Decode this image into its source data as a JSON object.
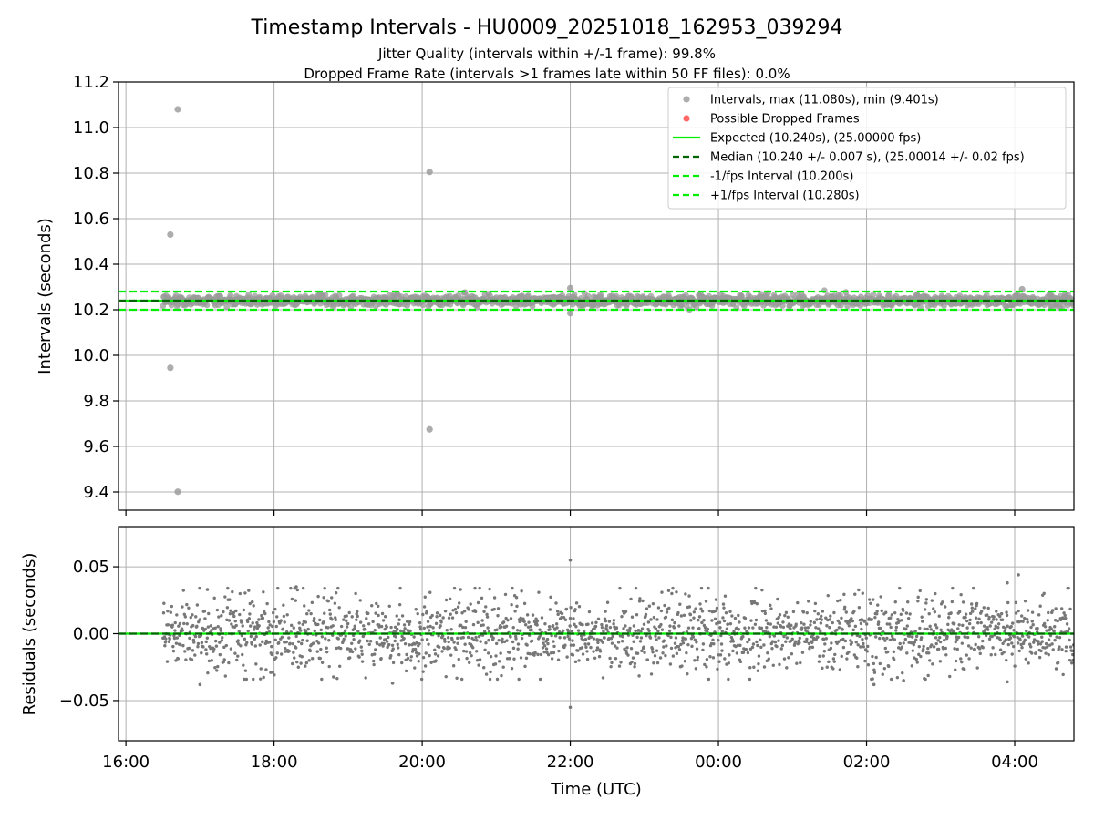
{
  "chart_data": [
    {
      "type": "scatter",
      "title": "Timestamp Intervals - HU0009_20251018_162953_039294",
      "subtitles": [
        "Jitter Quality (intervals within +/-1 frame): 99.8%",
        "Dropped Frame Rate (intervals >1 frames late within 50 FF files): 0.0%"
      ],
      "xlabel": "",
      "ylabel": "Intervals (seconds)",
      "xlim": [
        15.9,
        28.8
      ],
      "ylim": [
        9.32,
        11.2
      ],
      "x_unit": "hours since 00:00 UTC on start day",
      "yticks": [
        9.4,
        9.6,
        9.8,
        10.0,
        10.2,
        10.4,
        10.6,
        10.8,
        11.0,
        11.2
      ],
      "ytick_labels": [
        "9.4",
        "9.6",
        "9.8",
        "10.0",
        "10.2",
        "10.4",
        "10.6",
        "10.8",
        "11.0",
        "11.2"
      ],
      "xticks": [
        16,
        18,
        20,
        22,
        24,
        26,
        28
      ],
      "grid": true,
      "legend_position": "top-right",
      "series": [
        {
          "name": "Intervals, max (11.080s), min (9.401s)",
          "kind": "scatter",
          "color": "#999999",
          "note": "dense band from 16:30 to 04:48 centered on 10.240 s",
          "band": {
            "x_start": 16.5,
            "x_end": 28.8,
            "center": 10.24,
            "spread": 0.02
          },
          "outliers": [
            {
              "x": 16.7,
              "y": 11.08
            },
            {
              "x": 16.6,
              "y": 10.53
            },
            {
              "x": 16.6,
              "y": 9.945
            },
            {
              "x": 16.7,
              "y": 9.401
            },
            {
              "x": 20.1,
              "y": 10.805
            },
            {
              "x": 20.1,
              "y": 9.675
            },
            {
              "x": 22.0,
              "y": 10.295
            },
            {
              "x": 22.0,
              "y": 10.185
            },
            {
              "x": 28.1,
              "y": 10.29
            }
          ]
        },
        {
          "name": "Possible Dropped Frames",
          "kind": "scatter",
          "color": "#ff4d4d",
          "values": []
        },
        {
          "name": "Expected (10.240s), (25.00000 fps)",
          "kind": "hline",
          "y": 10.24,
          "color": "#00ee00",
          "style": "solid"
        },
        {
          "name": "Median (10.240 +/- 0.007 s), (25.00014 +/- 0.02 fps)",
          "kind": "hline",
          "y": 10.24,
          "color": "#006400",
          "style": "dashed"
        },
        {
          "name": "-1/fps Interval (10.200s)",
          "kind": "hline",
          "y": 10.2,
          "color": "#00ee00",
          "style": "dashed"
        },
        {
          "name": "+1/fps Interval (10.280s)",
          "kind": "hline",
          "y": 10.28,
          "color": "#00ee00",
          "style": "dashed"
        }
      ]
    },
    {
      "type": "scatter",
      "title": "",
      "xlabel": "Time (UTC)",
      "ylabel": "Residuals (seconds)",
      "xlim": [
        15.9,
        28.8
      ],
      "ylim": [
        -0.08,
        0.08
      ],
      "yticks": [
        -0.05,
        0.0,
        0.05
      ],
      "ytick_labels": [
        "−0.05",
        "0.00",
        "0.05"
      ],
      "xticks": [
        16,
        18,
        20,
        22,
        24,
        26,
        28
      ],
      "xtick_labels": [
        "16:00",
        "18:00",
        "20:00",
        "22:00",
        "00:00",
        "02:00",
        "04:00"
      ],
      "grid": true,
      "series": [
        {
          "name": "Residuals",
          "kind": "scatter",
          "color": "#777777",
          "note": "about 2000 residual points between 16:30 and 04:48, mostly within +/-0.02 s",
          "band": {
            "x_start": 16.5,
            "x_end": 28.8,
            "center": 0.0,
            "spread": 0.012
          },
          "outliers": [
            {
              "x": 22.0,
              "y": 0.055
            },
            {
              "x": 22.0,
              "y": -0.055
            },
            {
              "x": 28.05,
              "y": 0.044
            },
            {
              "x": 27.9,
              "y": 0.038
            },
            {
              "x": 18.3,
              "y": 0.035
            },
            {
              "x": 17.1,
              "y": 0.033
            },
            {
              "x": 17.0,
              "y": -0.038
            },
            {
              "x": 19.6,
              "y": -0.037
            },
            {
              "x": 26.1,
              "y": -0.038
            },
            {
              "x": 26.5,
              "y": -0.035
            },
            {
              "x": 27.9,
              "y": -0.036
            }
          ]
        },
        {
          "name": "Zero line",
          "kind": "hline",
          "y": 0.0,
          "color": "#00ee00",
          "style": "solid"
        },
        {
          "name": "Median line",
          "kind": "hline",
          "y": 0.0,
          "color": "#006400",
          "style": "dashed"
        }
      ]
    }
  ]
}
